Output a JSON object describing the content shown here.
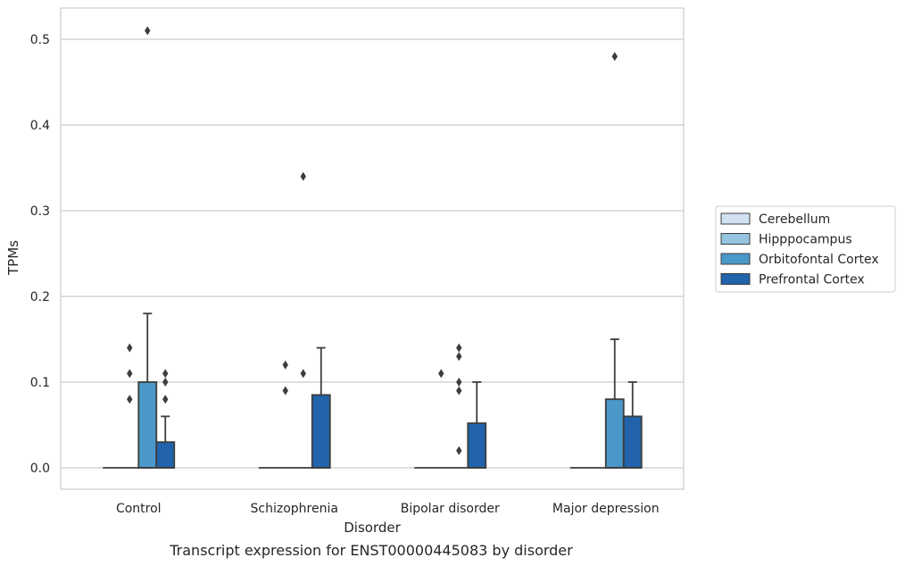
{
  "chart_data": {
    "type": "box",
    "caption": "Transcript expression for ENST00000445083 by disorder",
    "xlabel": "Disorder",
    "ylabel": "TPMs",
    "ylim": [
      -0.025,
      0.537
    ],
    "yticks": [
      0.0,
      0.1,
      0.2,
      0.3,
      0.4,
      0.5
    ],
    "ytick_labels": [
      "0.0",
      "0.1",
      "0.2",
      "0.3",
      "0.4",
      "0.5"
    ],
    "grid": true,
    "legend_position": "right",
    "categories": [
      "Control",
      "Schizophrenia",
      "Bipolar disorder",
      "Major depression"
    ],
    "series": [
      {
        "name": "Cerebellum",
        "color": "#d0e1f2",
        "boxes": [
          {
            "q1": 0,
            "median": 0,
            "q3": 0,
            "whisker_low": 0,
            "whisker_high": 0,
            "outliers": []
          },
          {
            "q1": 0,
            "median": 0,
            "q3": 0,
            "whisker_low": 0,
            "whisker_high": 0,
            "outliers": []
          },
          {
            "q1": 0,
            "median": 0,
            "q3": 0,
            "whisker_low": 0,
            "whisker_high": 0,
            "outliers": []
          },
          {
            "q1": 0,
            "median": 0,
            "q3": 0,
            "whisker_low": 0,
            "whisker_high": 0,
            "outliers": []
          }
        ]
      },
      {
        "name": "Hipppocampus",
        "color": "#94c4df",
        "boxes": [
          {
            "q1": 0,
            "median": 0,
            "q3": 0,
            "whisker_low": 0,
            "whisker_high": 0,
            "outliers": [
              0.08,
              0.11,
              0.14
            ]
          },
          {
            "q1": 0,
            "median": 0,
            "q3": 0,
            "whisker_low": 0,
            "whisker_high": 0,
            "outliers": [
              0.09,
              0.12
            ]
          },
          {
            "q1": 0,
            "median": 0,
            "q3": 0,
            "whisker_low": 0,
            "whisker_high": 0,
            "outliers": [
              0.11
            ]
          },
          {
            "q1": 0,
            "median": 0,
            "q3": 0,
            "whisker_low": 0,
            "whisker_high": 0,
            "outliers": []
          }
        ]
      },
      {
        "name": "Orbitofontal Cortex",
        "color": "#4a98c9",
        "boxes": [
          {
            "q1": 0,
            "median": 0,
            "q3": 0.1,
            "whisker_low": 0,
            "whisker_high": 0.18,
            "outliers": [
              0.51
            ]
          },
          {
            "q1": 0,
            "median": 0,
            "q3": 0,
            "whisker_low": 0,
            "whisker_high": 0,
            "outliers": [
              0.11,
              0.34
            ]
          },
          {
            "q1": 0,
            "median": 0,
            "q3": 0,
            "whisker_low": 0,
            "whisker_high": 0,
            "outliers": [
              0.1,
              0.13,
              0.09,
              0.14,
              0.02
            ]
          },
          {
            "q1": 0,
            "median": 0,
            "q3": 0.08,
            "whisker_low": 0,
            "whisker_high": 0.15,
            "outliers": [
              0.48
            ]
          }
        ]
      },
      {
        "name": "Prefrontal Cortex",
        "color": "#2164ab",
        "boxes": [
          {
            "q1": 0,
            "median": 0,
            "q3": 0.03,
            "whisker_low": 0,
            "whisker_high": 0.06,
            "outliers": [
              0.08,
              0.1,
              0.11
            ]
          },
          {
            "q1": 0,
            "median": 0,
            "q3": 0.085,
            "whisker_low": 0,
            "whisker_high": 0.14,
            "outliers": []
          },
          {
            "q1": 0,
            "median": 0,
            "q3": 0.052,
            "whisker_low": 0,
            "whisker_high": 0.1,
            "outliers": []
          },
          {
            "q1": 0,
            "median": 0,
            "q3": 0.06,
            "whisker_low": 0,
            "whisker_high": 0.1,
            "outliers": []
          }
        ]
      }
    ]
  }
}
